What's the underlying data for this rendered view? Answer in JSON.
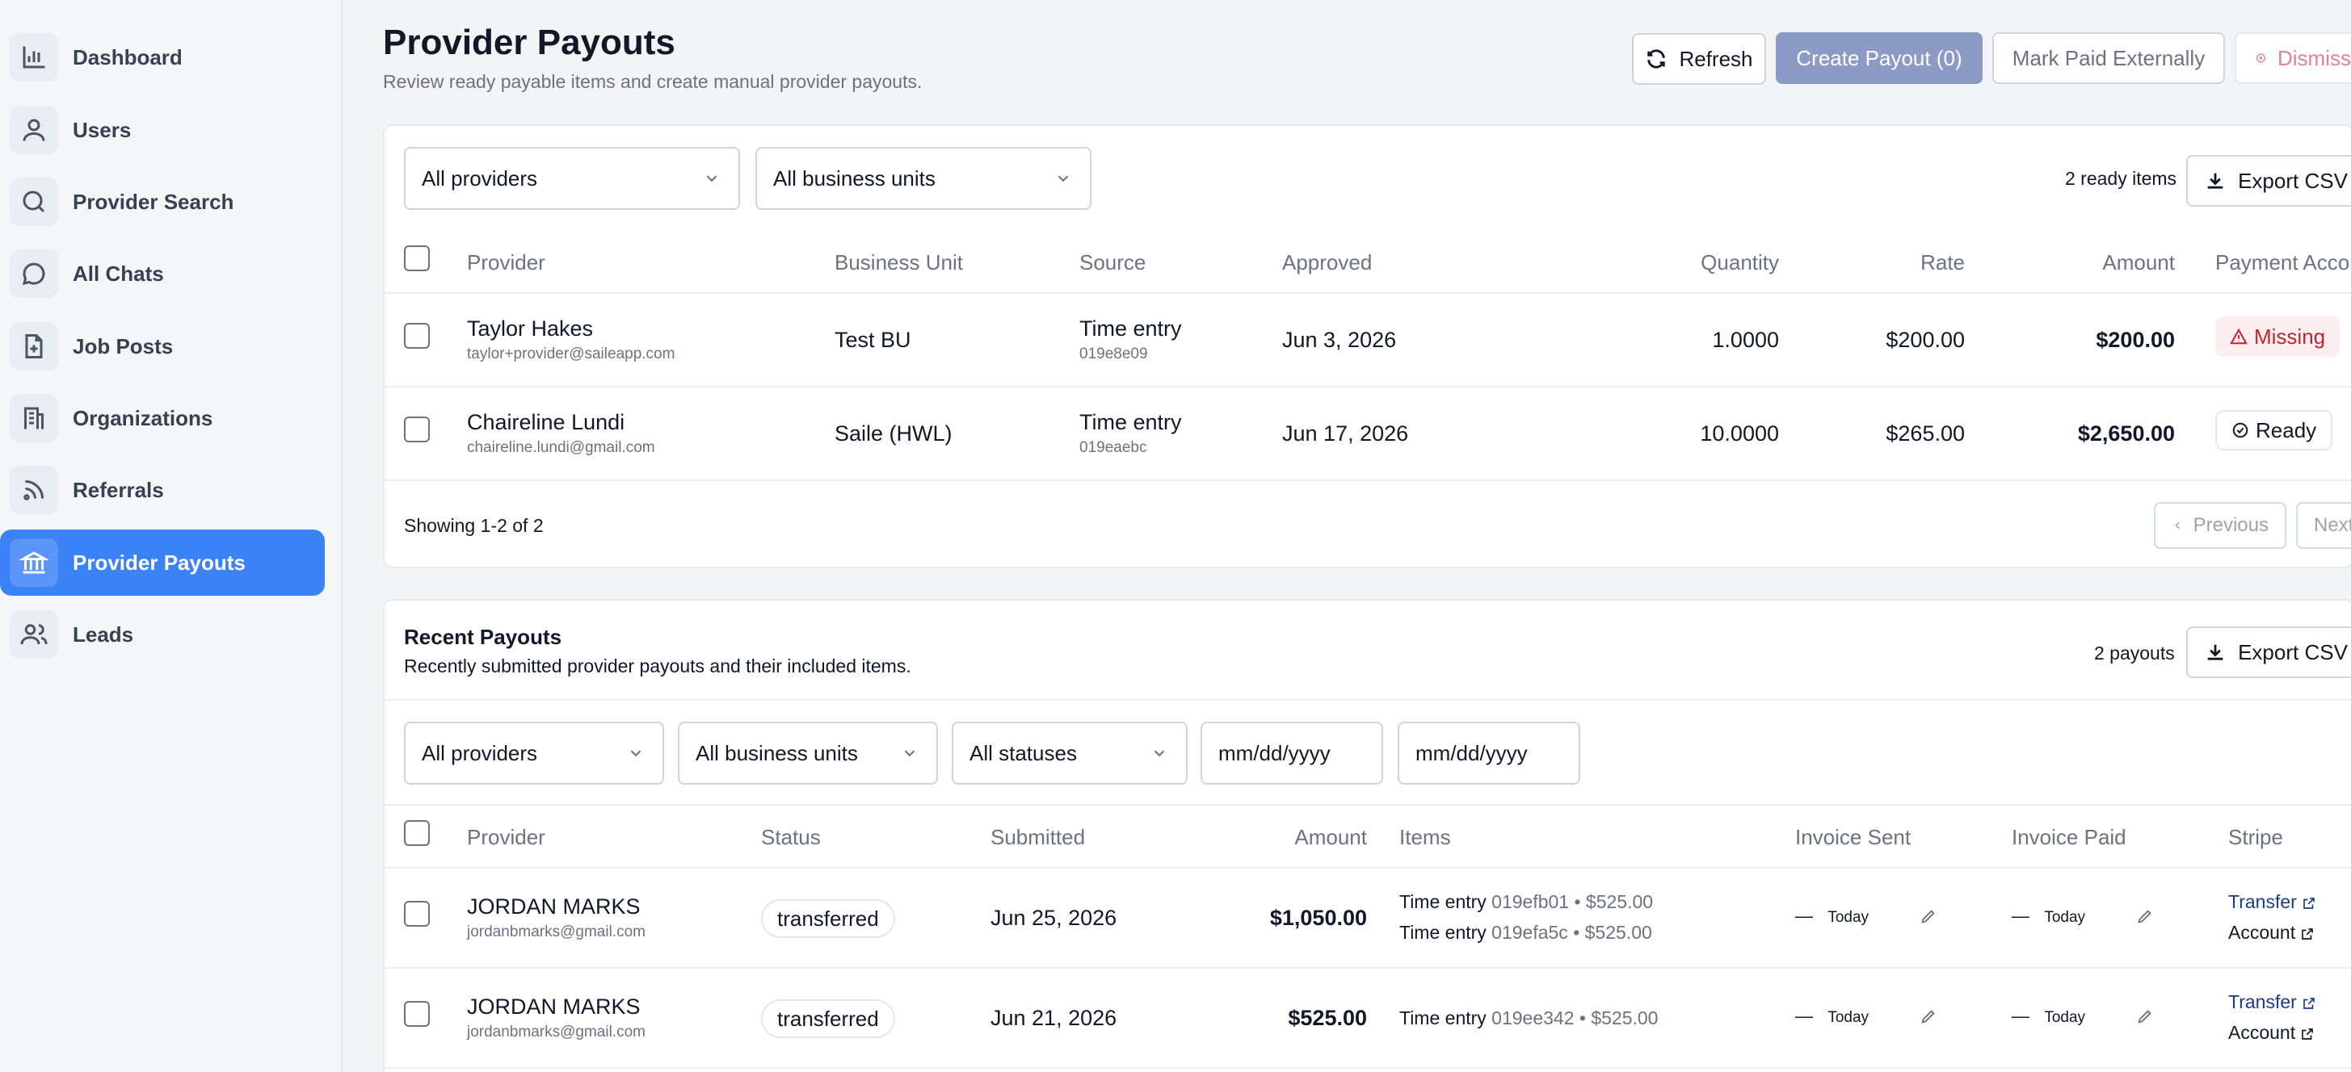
{
  "sidebar": {
    "items": [
      {
        "label": "Dashboard",
        "icon": "bar-chart-icon"
      },
      {
        "label": "Users",
        "icon": "user-icon"
      },
      {
        "label": "Provider Search",
        "icon": "search-icon"
      },
      {
        "label": "All Chats",
        "icon": "chat-bubble-icon"
      },
      {
        "label": "Job Posts",
        "icon": "file-plus-icon"
      },
      {
        "label": "Organizations",
        "icon": "building-icon"
      },
      {
        "label": "Referrals",
        "icon": "rss-icon"
      },
      {
        "label": "Provider Payouts",
        "icon": "bank-icon",
        "active": true
      },
      {
        "label": "Leads",
        "icon": "users-icon"
      }
    ]
  },
  "header": {
    "title": "Provider Payouts",
    "subtitle": "Review ready payable items and create manual provider payouts.",
    "refresh_label": "Refresh",
    "create_label": "Create Payout (0)",
    "mark_paid_label": "Mark Paid Externally",
    "dismiss_label": "Dismiss"
  },
  "ready": {
    "filter_provider": "All providers",
    "filter_business_unit": "All business units",
    "count_label": "2 ready items",
    "export_label": "Export CSV",
    "columns": {
      "provider": "Provider",
      "business_unit": "Business Unit",
      "source": "Source",
      "approved": "Approved",
      "quantity": "Quantity",
      "rate": "Rate",
      "amount": "Amount",
      "payment_account": "Payment Account"
    },
    "rows": [
      {
        "name": "Taylor Hakes",
        "email": "taylor+provider@saileapp.com",
        "business_unit": "Test BU",
        "source": "Time entry",
        "source_id": "019e8e09",
        "approved": "Jun 3, 2026",
        "quantity": "1.0000",
        "rate": "$200.00",
        "amount": "$200.00",
        "account_status": "Missing"
      },
      {
        "name": "Chaireline Lundi",
        "email": "chaireline.lundi@gmail.com",
        "business_unit": "Saile (HWL)",
        "source": "Time entry",
        "source_id": "019eaebc",
        "approved": "Jun 17, 2026",
        "quantity": "10.0000",
        "rate": "$265.00",
        "amount": "$2,650.00",
        "account_status": "Ready"
      }
    ],
    "showing": "Showing 1-2 of 2",
    "previous_label": "Previous",
    "next_label": "Next"
  },
  "recent": {
    "title": "Recent Payouts",
    "subtitle": "Recently submitted provider payouts and their included items.",
    "count_label": "2 payouts",
    "export_label": "Export CSV",
    "filter_provider": "All providers",
    "filter_business_unit": "All business units",
    "filter_status": "All statuses",
    "date_from_placeholder": "mm/dd/yyyy",
    "date_to_placeholder": "mm/dd/yyyy",
    "columns": {
      "provider": "Provider",
      "status": "Status",
      "submitted": "Submitted",
      "amount": "Amount",
      "items": "Items",
      "invoice_sent": "Invoice Sent",
      "invoice_paid": "Invoice Paid",
      "stripe": "Stripe"
    },
    "rows": [
      {
        "name": "JORDAN MARKS",
        "email": "jordanbmarks@gmail.com",
        "status": "transferred",
        "submitted": "Jun 25, 2026",
        "amount": "$1,050.00",
        "items": [
          {
            "label": "Time entry",
            "detail": "019efb01 • $525.00"
          },
          {
            "label": "Time entry",
            "detail": "019efa5c • $525.00"
          }
        ],
        "invoice_sent_dash": "—",
        "invoice_sent_today": "Today",
        "invoice_paid_dash": "—",
        "invoice_paid_today": "Today",
        "stripe_transfer": "Transfer",
        "stripe_account": "Account"
      },
      {
        "name": "JORDAN MARKS",
        "email": "jordanbmarks@gmail.com",
        "status": "transferred",
        "submitted": "Jun 21, 2026",
        "amount": "$525.00",
        "items": [
          {
            "label": "Time entry",
            "detail": "019ee342 • $525.00"
          }
        ],
        "invoice_sent_dash": "—",
        "invoice_sent_today": "Today",
        "invoice_paid_dash": "—",
        "invoice_paid_today": "Today",
        "stripe_transfer": "Transfer",
        "stripe_account": "Account"
      }
    ]
  },
  "colors": {
    "active_nav": "#3b82f6",
    "primary_button": "#8b9bc6",
    "missing": "#c0262d",
    "link": "#1e3a8a"
  }
}
